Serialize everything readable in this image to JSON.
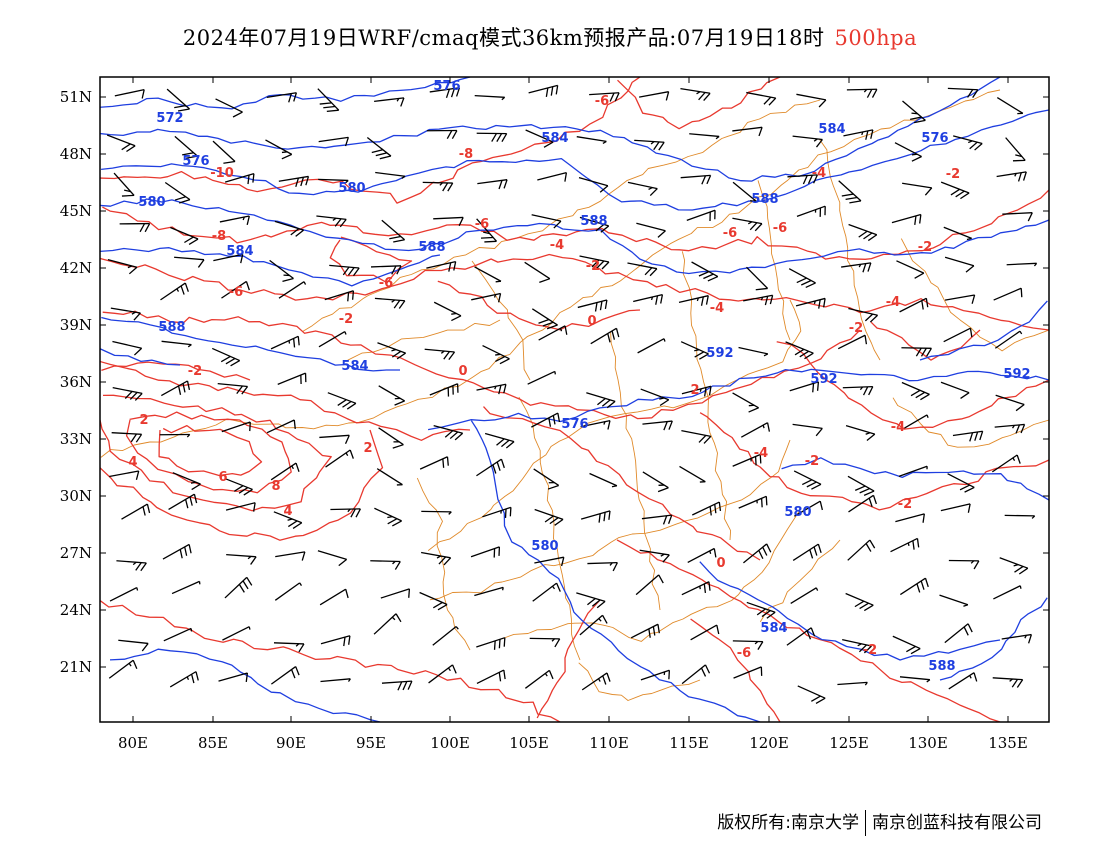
{
  "title": {
    "main": "2024年07月19日WRF/cmaq模式36km预报产品:07月19日18时",
    "level": "500hpa"
  },
  "colors": {
    "temperature": "#e8392f",
    "height": "#1f3fe0",
    "border": "#e08a2a",
    "wind": "#000000"
  },
  "axes": {
    "lon_ticks": [
      "80E",
      "85E",
      "90E",
      "95E",
      "100E",
      "105E",
      "110E",
      "115E",
      "120E",
      "125E",
      "130E",
      "135E"
    ],
    "lat_ticks": [
      "51N",
      "48N",
      "45N",
      "42N",
      "39N",
      "36N",
      "33N",
      "30N",
      "27N",
      "24N",
      "21N"
    ]
  },
  "height_labels": [
    "576",
    "572",
    "576",
    "580",
    "580",
    "584",
    "584",
    "588",
    "588",
    "584",
    "588",
    "592",
    "592",
    "592",
    "576",
    "580",
    "580",
    "584",
    "588",
    "584",
    "588",
    "576"
  ],
  "temp_labels": [
    "-6",
    "-8",
    "-10",
    "-6",
    "-6",
    "-8",
    "-4",
    "-2",
    "-2",
    "0",
    "2",
    "-2",
    "4",
    "6",
    "8",
    "4",
    "2",
    "-4",
    "0",
    "-6",
    "-6",
    "-6",
    "-4",
    "-2",
    "-2",
    "-4",
    "-2",
    "2",
    "-4",
    "-4",
    "-2",
    "-2",
    "0",
    "-6",
    "-2"
  ],
  "footer": {
    "left": "版权所有:南京大学",
    "right": "南京创蓝科技有限公司"
  }
}
